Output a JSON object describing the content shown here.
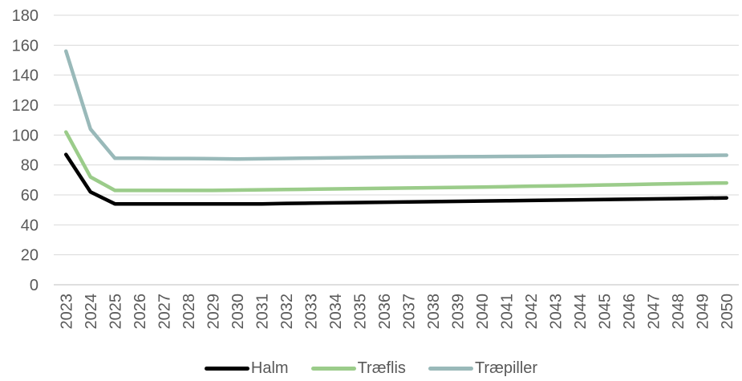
{
  "chart_data": {
    "type": "line",
    "title": "",
    "xlabel": "",
    "ylabel": "",
    "ylim": [
      0,
      180
    ],
    "yticks": [
      0,
      20,
      40,
      60,
      80,
      100,
      120,
      140,
      160,
      180
    ],
    "grid": true,
    "legend_position": "bottom",
    "categories": [
      "2023",
      "2024",
      "2025",
      "2026",
      "2027",
      "2028",
      "2029",
      "2030",
      "2031",
      "2032",
      "2033",
      "2034",
      "2035",
      "2036",
      "2037",
      "2038",
      "2039",
      "2040",
      "2041",
      "2042",
      "2043",
      "2044",
      "2045",
      "2046",
      "2047",
      "2048",
      "2049",
      "2050"
    ],
    "series": [
      {
        "name": "Halm",
        "color": "#000000",
        "values": [
          87,
          62,
          54,
          54,
          54,
          54,
          54,
          54,
          54,
          54.3,
          54.5,
          54.7,
          54.9,
          55.1,
          55.3,
          55.5,
          55.7,
          55.9,
          56.1,
          56.3,
          56.5,
          56.7,
          56.9,
          57.1,
          57.3,
          57.5,
          57.8,
          58
        ]
      },
      {
        "name": "Træflis",
        "color": "#9bcc8a",
        "values": [
          102,
          72,
          63,
          63,
          63,
          63,
          63,
          63.2,
          63.4,
          63.6,
          63.8,
          64,
          64.2,
          64.4,
          64.6,
          64.8,
          65,
          65.2,
          65.5,
          65.8,
          66,
          66.3,
          66.6,
          66.9,
          67.2,
          67.5,
          67.8,
          68
        ]
      },
      {
        "name": "Træpiller",
        "color": "#99b9b9",
        "values": [
          156,
          104,
          84.5,
          84.5,
          84.3,
          84.3,
          84.2,
          84,
          84.2,
          84.4,
          84.6,
          84.8,
          85,
          85.2,
          85.3,
          85.4,
          85.5,
          85.6,
          85.7,
          85.8,
          85.9,
          86,
          86,
          86.1,
          86.2,
          86.3,
          86.4,
          86.5
        ]
      }
    ]
  }
}
